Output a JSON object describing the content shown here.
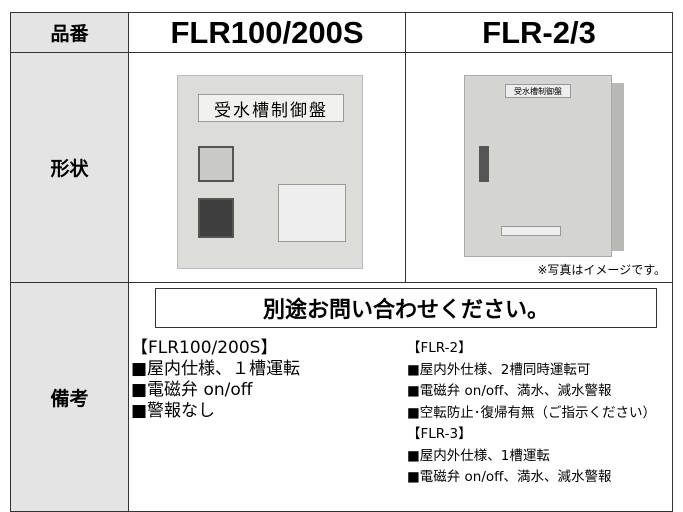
{
  "header": {
    "label": "品番",
    "products": [
      "FLR100/200S",
      "FLR-2/3"
    ]
  },
  "shape": {
    "label": "形状",
    "photo_labels": [
      "受水槽制御盤",
      "受水槽制御盤"
    ],
    "note": "※写真はイメージです。"
  },
  "remarks": {
    "label": "備考",
    "banner": "別途お問い合わせください。",
    "left": [
      "【FLR100/200S】",
      "■屋内仕様、１槽運転",
      "■電磁弁 on/off",
      "■警報なし"
    ],
    "right": [
      "【FLR-2】",
      "■屋内外仕様、2槽同時運転可",
      "■電磁弁 on/off、満水、減水警報",
      "■空転防止･復帰有無（ご指示ください）",
      "【FLR-3】",
      "■屋内外仕様、1槽運転",
      "■電磁弁 on/off、満水、減水警報"
    ]
  }
}
